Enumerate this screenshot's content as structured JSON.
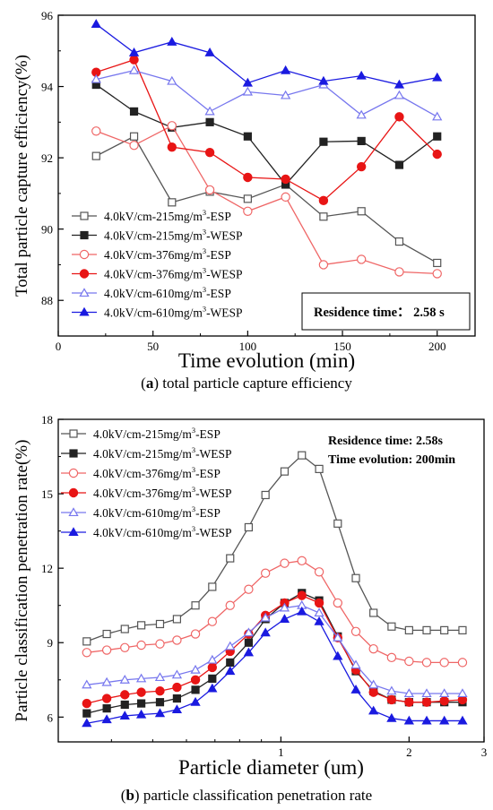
{
  "charts": [
    {
      "chart_data": {
        "type": "line",
        "ylabel": "Total particle capture efficiency(%)",
        "xlabel": "Time evolution (min)",
        "xlim": [
          0,
          220
        ],
        "ylim": [
          87,
          96
        ],
        "xticks": [
          "0",
          "50",
          "100",
          "150",
          "200"
        ],
        "yticks": [
          "88",
          "90",
          "92",
          "94",
          "96"
        ],
        "legend_position": "bottom-left",
        "annotation": "Residence time： 2.58 s",
        "x": [
          20,
          40,
          60,
          80,
          100,
          120,
          140,
          160,
          180,
          200
        ],
        "series": [
          {
            "name": "4.0kV/cm-215mg/m3-ESP",
            "name_main": "4.0kV/cm-215mg/m",
            "name_sup": "3",
            "name_tail": "-ESP",
            "color": "#555555",
            "marker": "square",
            "filled": false,
            "values": [
              92.05,
              92.6,
              90.75,
              91.05,
              90.85,
              91.25,
              90.35,
              90.5,
              89.65,
              89.05
            ]
          },
          {
            "name": "4.0kV/cm-215mg/m3-WESP",
            "name_main": "4.0kV/cm-215mg/m",
            "name_sup": "3",
            "name_tail": "-WESP",
            "color": "#222222",
            "marker": "square",
            "filled": true,
            "values": [
              94.05,
              93.3,
              92.85,
              93.0,
              92.6,
              91.25,
              92.45,
              92.47,
              91.8,
              92.6
            ]
          },
          {
            "name": "4.0kV/cm-376mg/m3-ESP",
            "name_main": "4.0kV/cm-376mg/m",
            "name_sup": "3",
            "name_tail": "-ESP",
            "color": "#ef6666",
            "marker": "circle",
            "filled": false,
            "values": [
              92.75,
              92.35,
              92.9,
              91.1,
              90.5,
              90.9,
              89.0,
              89.15,
              88.8,
              88.75
            ]
          },
          {
            "name": "4.0kV/cm-376mg/m3-WESP",
            "name_main": "4.0kV/cm-376mg/m",
            "name_sup": "3",
            "name_tail": "-WESP",
            "color": "#e81515",
            "marker": "circle",
            "filled": true,
            "values": [
              94.4,
              94.75,
              92.3,
              92.15,
              91.45,
              91.4,
              90.8,
              91.75,
              93.15,
              92.1
            ]
          },
          {
            "name": "4.0kV/cm-610mg/m3-ESP",
            "name_main": "4.0kV/cm-610mg/m",
            "name_sup": "3",
            "name_tail": "-ESP",
            "color": "#7777ee",
            "marker": "triangle",
            "filled": false,
            "values": [
              94.2,
              94.45,
              94.15,
              93.3,
              93.85,
              93.75,
              94.05,
              93.2,
              93.75,
              93.15
            ]
          },
          {
            "name": "4.0kV/cm-610mg/m3-WESP",
            "name_main": "4.0kV/cm-610mg/m",
            "name_sup": "3",
            "name_tail": "-WESP",
            "color": "#1a1ae0",
            "marker": "triangle",
            "filled": true,
            "values": [
              95.75,
              94.95,
              95.25,
              94.95,
              94.1,
              94.45,
              94.15,
              94.3,
              94.05,
              94.25
            ]
          }
        ]
      },
      "caption_letter": "a",
      "caption_text": " total particle capture efficiency"
    },
    {
      "chart_data": {
        "type": "line",
        "xscale": "log",
        "ylabel": "Particle classification penetration rate(%)",
        "xlabel": "Particle diameter (um)",
        "xlim": [
          0.3,
          3
        ],
        "ylim": [
          5,
          18
        ],
        "xticks": [
          "1",
          "2",
          "3"
        ],
        "yticks": [
          "6",
          "9",
          "12",
          "15",
          "18"
        ],
        "legend_position": "top-left",
        "annotation_lines": [
          "Residence time: 2.58s",
          "Time evolution: 200min"
        ],
        "x": [
          0.35,
          0.39,
          0.43,
          0.47,
          0.52,
          0.57,
          0.63,
          0.69,
          0.76,
          0.84,
          0.92,
          1.02,
          1.12,
          1.23,
          1.36,
          1.5,
          1.65,
          1.82,
          2.0,
          2.2,
          2.42,
          2.67
        ],
        "series": [
          {
            "name": "4.0kV/cm-215mg/m3-ESP",
            "name_main": "4.0kV/cm-215mg/m",
            "name_sup": "3",
            "name_tail": "-ESP",
            "color": "#555555",
            "marker": "square",
            "filled": false,
            "values": [
              9.05,
              9.35,
              9.55,
              9.7,
              9.75,
              9.95,
              10.5,
              11.25,
              12.4,
              13.65,
              14.95,
              15.9,
              16.55,
              16.0,
              13.8,
              11.6,
              10.2,
              9.65,
              9.5,
              9.5,
              9.5,
              9.5
            ]
          },
          {
            "name": "4.0kV/cm-215mg/m3-WESP",
            "name_main": "4.0kV/cm-215mg/m",
            "name_sup": "3",
            "name_tail": "-WESP",
            "color": "#222222",
            "marker": "square",
            "filled": true,
            "values": [
              6.15,
              6.35,
              6.5,
              6.55,
              6.6,
              6.75,
              7.1,
              7.55,
              8.2,
              9.0,
              9.95,
              10.6,
              11.0,
              10.7,
              9.25,
              7.85,
              7.05,
              6.7,
              6.6,
              6.6,
              6.6,
              6.6
            ]
          },
          {
            "name": "4.0kV/cm-376mg/m3-ESP",
            "name_main": "4.0kV/cm-376mg/m",
            "name_sup": "3",
            "name_tail": "-ESP",
            "color": "#ef6666",
            "marker": "circle",
            "filled": false,
            "values": [
              8.6,
              8.7,
              8.8,
              8.9,
              8.95,
              9.1,
              9.35,
              9.85,
              10.5,
              11.15,
              11.8,
              12.2,
              12.3,
              11.85,
              10.6,
              9.45,
              8.75,
              8.4,
              8.25,
              8.2,
              8.2,
              8.2
            ]
          },
          {
            "name": "4.0kV/cm-376mg/m3-WESP",
            "name_main": "4.0kV/cm-376mg/m",
            "name_sup": "3",
            "name_tail": "-WESP",
            "color": "#e81515",
            "marker": "circle",
            "filled": true,
            "values": [
              6.55,
              6.75,
              6.9,
              7.0,
              7.05,
              7.2,
              7.5,
              8.0,
              8.65,
              9.35,
              10.1,
              10.6,
              10.9,
              10.6,
              9.2,
              7.9,
              7.0,
              6.7,
              6.6,
              6.6,
              6.65,
              6.7
            ]
          },
          {
            "name": "4.0kV/cm-610mg/m3-ESP",
            "name_main": "4.0kV/cm-610mg/m",
            "name_sup": "3",
            "name_tail": "-ESP",
            "color": "#7777ee",
            "marker": "triangle",
            "filled": false,
            "values": [
              7.3,
              7.4,
              7.5,
              7.55,
              7.6,
              7.7,
              7.9,
              8.3,
              8.85,
              9.4,
              10.0,
              10.4,
              10.5,
              10.2,
              9.2,
              8.1,
              7.3,
              7.05,
              6.95,
              6.95,
              6.95,
              6.95
            ]
          },
          {
            "name": "4.0kV/cm-610mg/m3-WESP",
            "name_main": "4.0kV/cm-610mg/m",
            "name_sup": "3",
            "name_tail": "-WESP",
            "color": "#1a1ae0",
            "marker": "triangle",
            "filled": true,
            "values": [
              5.75,
              5.9,
              6.05,
              6.1,
              6.15,
              6.3,
              6.6,
              7.15,
              7.85,
              8.6,
              9.4,
              9.95,
              10.25,
              9.85,
              8.45,
              7.1,
              6.25,
              5.95,
              5.85,
              5.85,
              5.85,
              5.85
            ]
          }
        ]
      },
      "caption_letter": "b",
      "caption_text": " particle classification penetration rate"
    }
  ]
}
